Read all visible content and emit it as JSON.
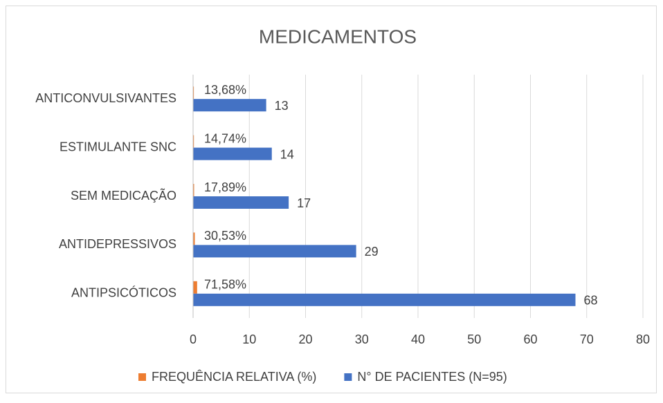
{
  "chart_data": {
    "type": "hbar",
    "title": "MEDICAMENTOS",
    "categories": [
      "ANTICONVULSIVANTES",
      "ESTIMULANTE SNC",
      "SEM MEDICAÇÃO",
      "ANTIDEPRESSIVOS",
      "ANTIPSICÓTICOS"
    ],
    "series": [
      {
        "name": "FREQUÊNCIA RELATIVA (%)",
        "color": "#ed7d31",
        "values": [
          0.1368,
          0.1474,
          0.1789,
          0.3053,
          0.7158
        ],
        "value_labels": [
          "13,68%",
          "14,74%",
          "17,89%",
          "30,53%",
          "71,58%"
        ]
      },
      {
        "name": "N° DE PACIENTES (N=95)",
        "color": "#4472c4",
        "values": [
          13,
          14,
          17,
          29,
          68
        ]
      }
    ],
    "xlim": [
      0,
      80
    ],
    "xticks": [
      0,
      10,
      20,
      30,
      40,
      50,
      60,
      70,
      80
    ],
    "grid": true,
    "legend": "bottom"
  }
}
